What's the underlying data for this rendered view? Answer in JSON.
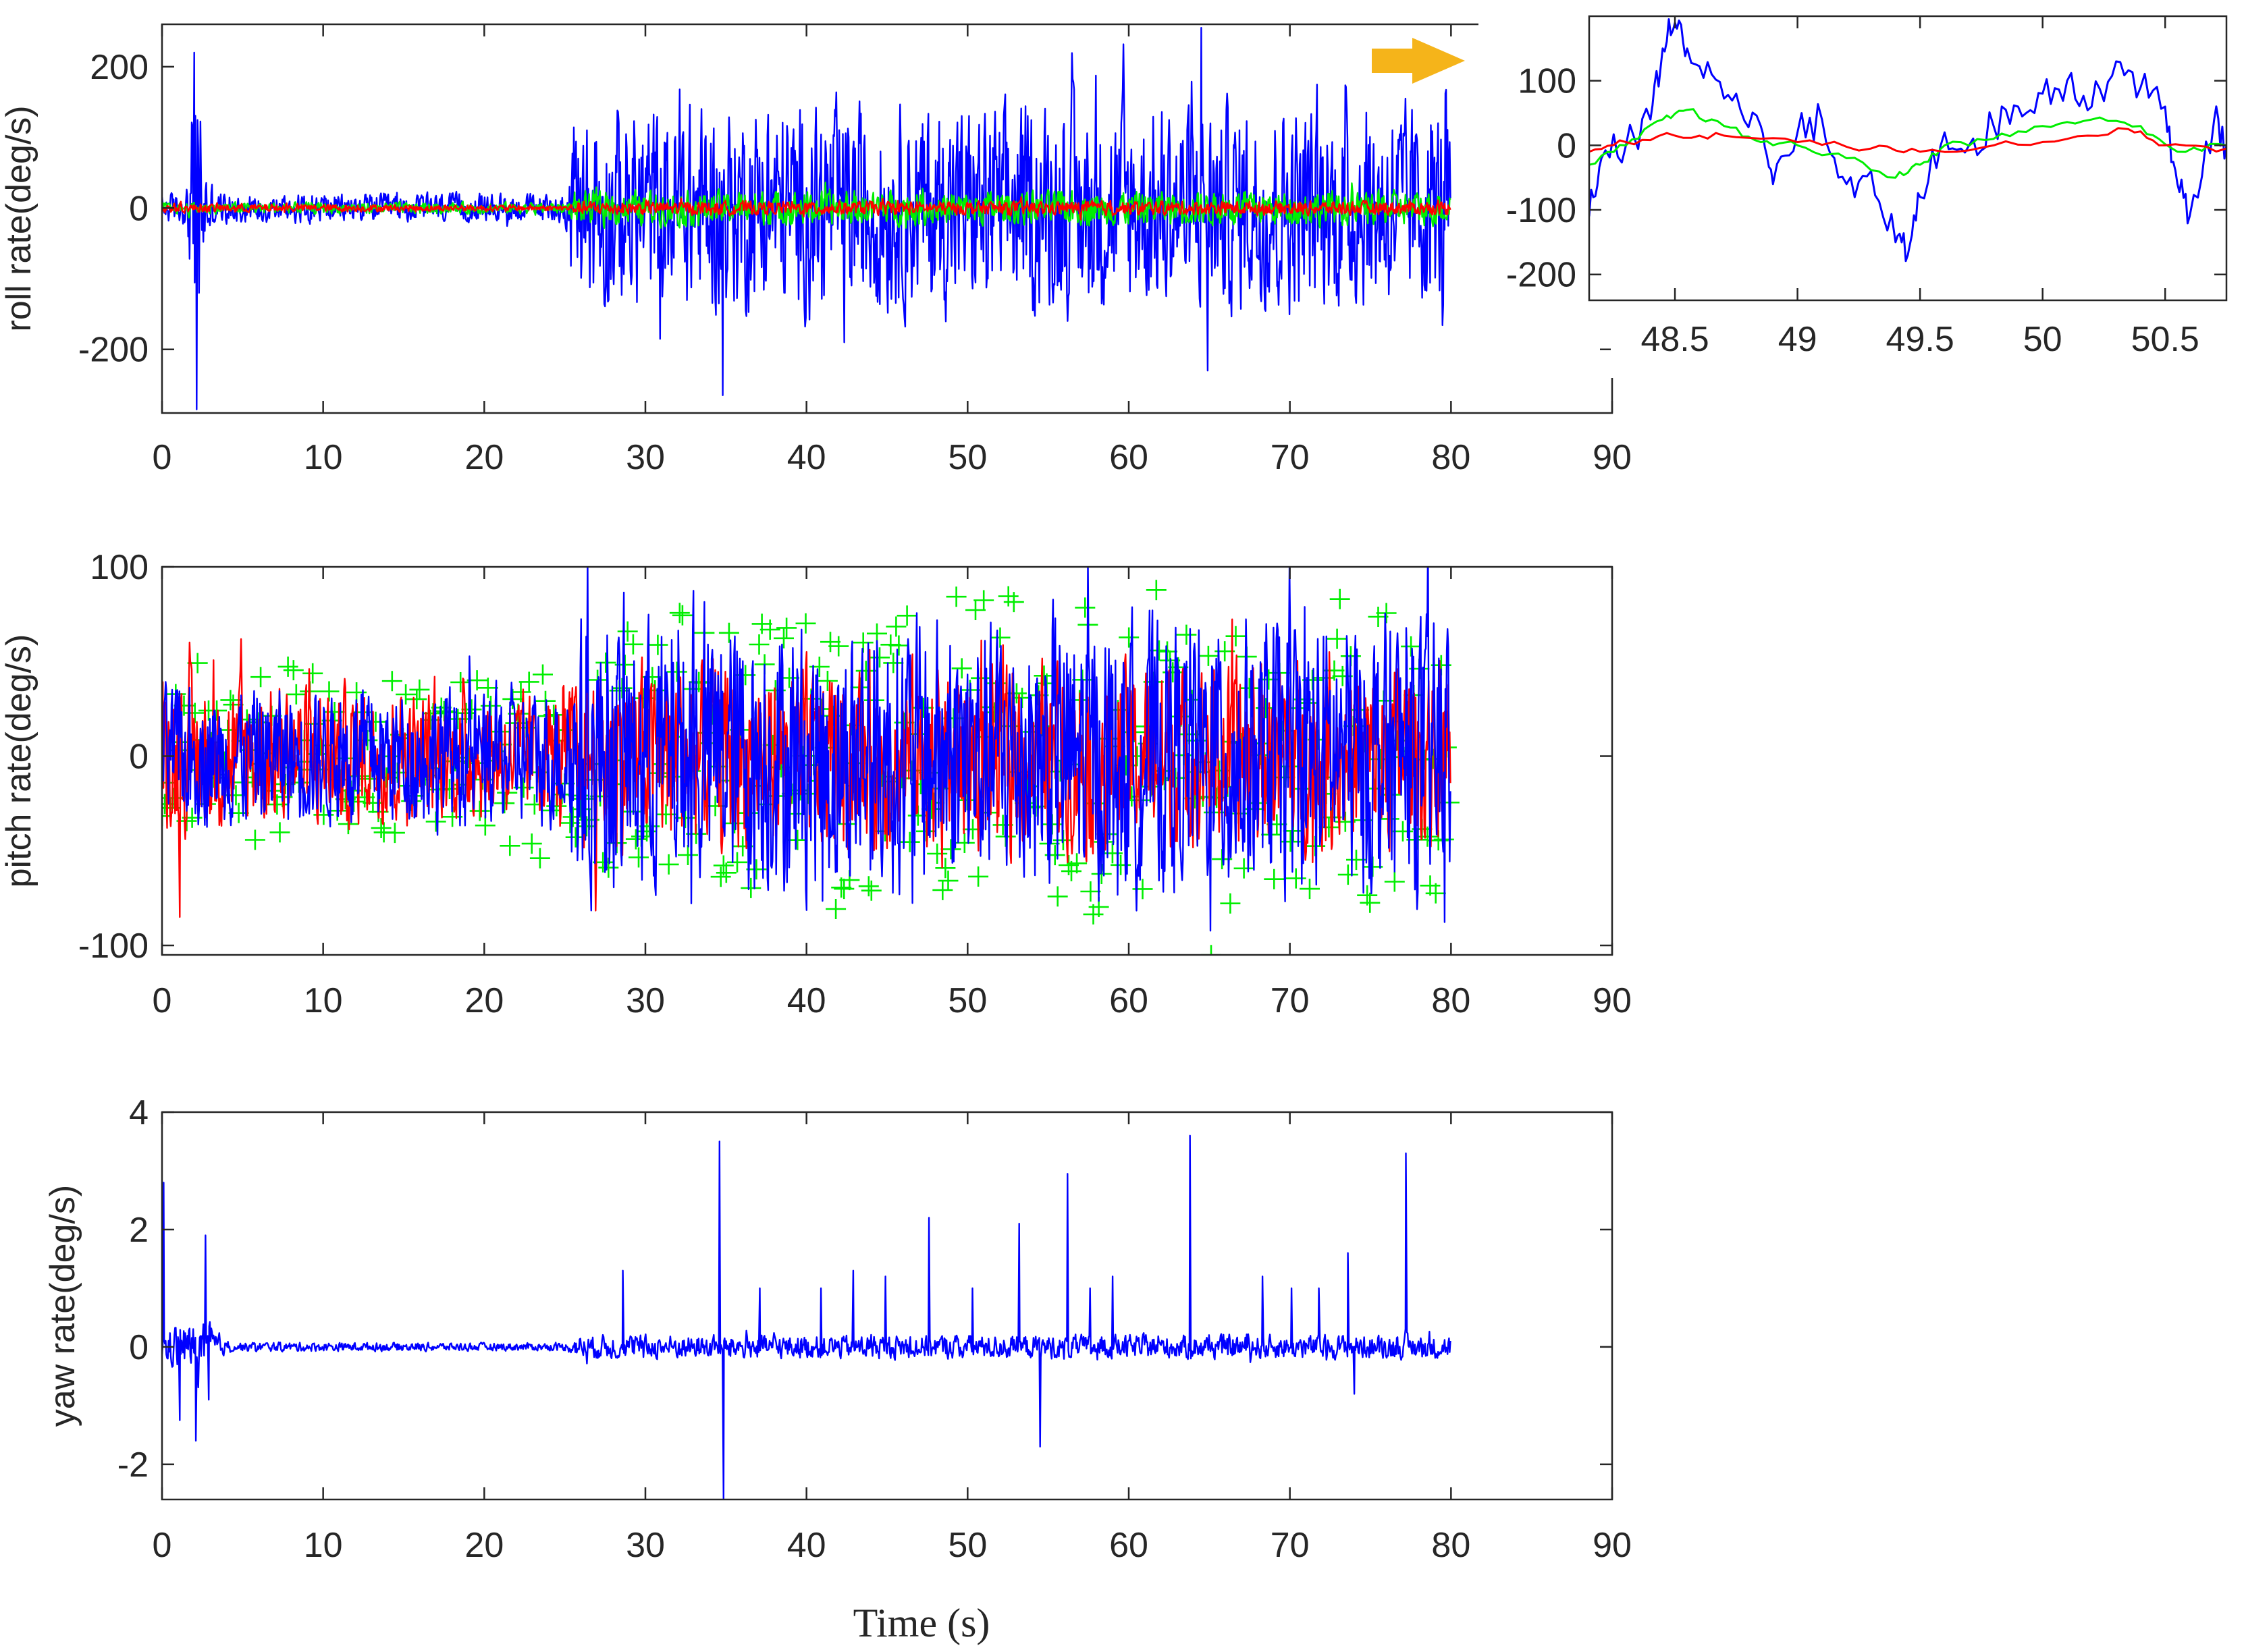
{
  "colors": {
    "estimate_blue": "#0000ff",
    "filtered_green": "#00ee00",
    "reference_red": "#ff0000",
    "arrow_orange": "#f5b41a",
    "axes": "#262626"
  },
  "xlabel": "Time (s)",
  "arrow_icon": "right-arrow-icon",
  "chart_data": [
    {
      "id": "roll",
      "type": "line",
      "ylabel": "roll rate(deg/s)",
      "xlim": [
        0,
        90
      ],
      "ylim": [
        -290,
        260
      ],
      "xticks": [
        0,
        10,
        20,
        30,
        40,
        50,
        60,
        70,
        80,
        90
      ],
      "yticks": [
        -200,
        0,
        200
      ],
      "series": [
        {
          "color": "#0000ff",
          "style": "noise",
          "x": [
            0,
            1.5,
            2,
            2.3,
            2.6,
            3.3,
            5,
            25,
            26,
            80
          ],
          "amp": [
            25,
            30,
            230,
            270,
            90,
            30,
            25,
            25,
            180,
            180
          ],
          "spikes": [
            [
              2.0,
              220
            ],
            [
              2.15,
              -285
            ],
            [
              34.8,
              -265
            ],
            [
              64.5,
              255
            ],
            [
              64.9,
              -230
            ]
          ]
        },
        {
          "color": "#00ee00",
          "style": "noise",
          "x": [
            0,
            25,
            26,
            80
          ],
          "amp": [
            10,
            10,
            30,
            30
          ]
        },
        {
          "color": "#ff0000",
          "style": "noise",
          "x": [
            0,
            25,
            26,
            80
          ],
          "amp": [
            8,
            5,
            12,
            12
          ]
        }
      ]
    },
    {
      "id": "roll-zoom",
      "type": "line",
      "ylabel": "",
      "xlim": [
        48.15,
        50.75
      ],
      "ylim": [
        -240,
        200
      ],
      "xticks": [
        48.5,
        49,
        49.5,
        50,
        50.5
      ],
      "xtick_labels": [
        "48.5",
        "49",
        "49.5",
        "50",
        "50.5"
      ],
      "yticks": [
        -200,
        -100,
        0,
        100
      ],
      "series": [
        {
          "color": "#0000ff",
          "x": [
            48.15,
            48.2,
            48.3,
            48.4,
            48.45,
            48.5,
            48.55,
            48.65,
            48.75,
            48.85,
            48.9,
            49.0,
            49.1,
            49.2,
            49.3,
            49.4,
            49.45,
            49.5,
            49.6,
            49.7,
            49.8,
            49.9,
            50.0,
            50.1,
            50.2,
            50.3,
            50.4,
            50.5,
            50.55,
            50.6,
            50.7,
            50.75
          ],
          "y": [
            -110,
            -20,
            0,
            40,
            150,
            190,
            150,
            110,
            80,
            30,
            -60,
            20,
            40,
            -60,
            -40,
            -150,
            -170,
            -80,
            20,
            0,
            30,
            60,
            80,
            100,
            60,
            130,
            90,
            60,
            -60,
            -110,
            40,
            0
          ]
        },
        {
          "color": "#00ee00",
          "x": [
            48.15,
            48.3,
            48.45,
            48.55,
            48.7,
            48.85,
            49.0,
            49.2,
            49.4,
            49.5,
            49.6,
            49.8,
            50.0,
            50.2,
            50.4,
            50.55,
            50.75
          ],
          "y": [
            -30,
            0,
            40,
            55,
            30,
            5,
            0,
            -20,
            -50,
            -30,
            0,
            10,
            30,
            40,
            30,
            -10,
            0
          ]
        },
        {
          "color": "#ff0000",
          "x": [
            48.15,
            48.3,
            48.5,
            48.7,
            49.0,
            49.3,
            49.5,
            49.8,
            50.1,
            50.35,
            50.5,
            50.75
          ],
          "y": [
            -10,
            5,
            15,
            15,
            5,
            -5,
            -10,
            0,
            10,
            25,
            0,
            -5
          ]
        }
      ]
    },
    {
      "id": "pitch",
      "type": "line",
      "ylabel": "pitch rate(deg/s)",
      "xlim": [
        0,
        90
      ],
      "ylim": [
        -105,
        100
      ],
      "xticks": [
        0,
        10,
        20,
        30,
        40,
        50,
        60,
        70,
        80,
        90
      ],
      "yticks": [
        -100,
        0,
        100
      ],
      "series": [
        {
          "color": "#00ee00",
          "style": "plus",
          "x": [
            0,
            25,
            26,
            80
          ],
          "amp": [
            60,
            60,
            100,
            100
          ]
        },
        {
          "color": "#ff0000",
          "style": "noise",
          "x": [
            0,
            25,
            26,
            80
          ],
          "amp": [
            50,
            40,
            60,
            60
          ],
          "spikes": [
            [
              1.1,
              -85
            ]
          ]
        },
        {
          "color": "#0000ff",
          "style": "noise",
          "x": [
            0,
            25,
            26,
            80
          ],
          "amp": [
            45,
            45,
            90,
            90
          ]
        }
      ]
    },
    {
      "id": "yaw",
      "type": "line",
      "ylabel": "yaw rate(deg/s)",
      "xlim": [
        0,
        90
      ],
      "ylim": [
        -2.6,
        4
      ],
      "xticks": [
        0,
        10,
        20,
        30,
        40,
        50,
        60,
        70,
        80,
        90
      ],
      "yticks": [
        -2,
        0,
        2,
        4
      ],
      "series": [
        {
          "color": "#0000ff",
          "style": "noise",
          "x": [
            0,
            1,
            3,
            4,
            25,
            26,
            80
          ],
          "amp": [
            0.3,
            0.5,
            0.5,
            0.1,
            0.08,
            0.25,
            0.25
          ],
          "spikes": [
            [
              0.1,
              2.8
            ],
            [
              1.1,
              -1.25
            ],
            [
              2.1,
              -1.6
            ],
            [
              2.7,
              1.9
            ],
            [
              2.9,
              -0.9
            ],
            [
              28.6,
              1.3
            ],
            [
              34.6,
              3.5
            ],
            [
              34.85,
              -2.6
            ],
            [
              37.1,
              1.0
            ],
            [
              40.9,
              1.0
            ],
            [
              42.9,
              1.3
            ],
            [
              44.9,
              1.2
            ],
            [
              47.6,
              2.2
            ],
            [
              50.3,
              1.0
            ],
            [
              53.2,
              2.1
            ],
            [
              54.5,
              -1.7
            ],
            [
              56.2,
              2.95
            ],
            [
              57.6,
              1.0
            ],
            [
              59.0,
              1.2
            ],
            [
              63.8,
              3.6
            ],
            [
              68.3,
              1.2
            ],
            [
              70.1,
              1.0
            ],
            [
              71.8,
              1.0
            ],
            [
              73.6,
              1.6
            ],
            [
              74.0,
              -0.8
            ],
            [
              77.2,
              3.3
            ]
          ]
        }
      ]
    }
  ]
}
